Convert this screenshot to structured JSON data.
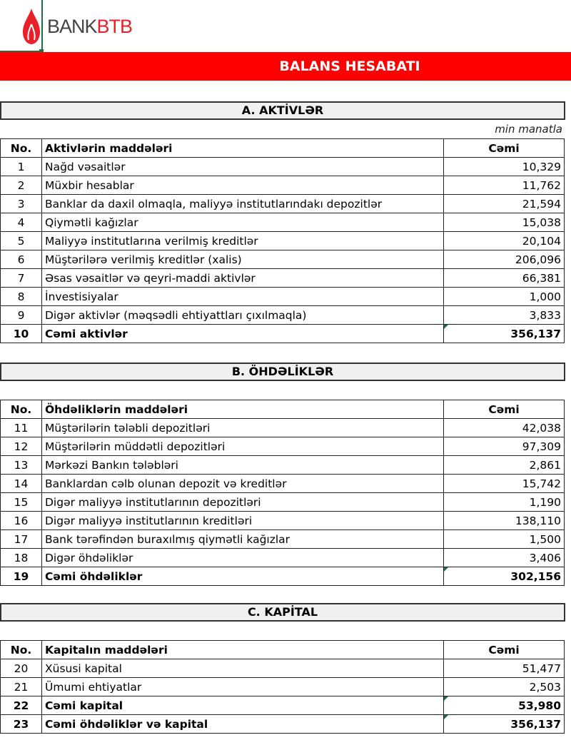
{
  "logo": {
    "text_a": "BANK",
    "text_b": "BTB"
  },
  "title": "BALANS HESABATI",
  "unit": "min manatla",
  "sections": [
    {
      "heading": "A. AKTİVLƏR",
      "columns": [
        "No.",
        "Aktivlərin maddələri",
        "Cəmi"
      ],
      "rows": [
        [
          "1",
          "Nağd vəsaitlər",
          "10,329"
        ],
        [
          "2",
          "Müxbir hesablar",
          "11,762"
        ],
        [
          "3",
          "Banklar da daxil olmaqla, maliyyə institutlarındakı depozitlər",
          "21,594"
        ],
        [
          "4",
          "Qiymətli kağızlar",
          "15,038"
        ],
        [
          "5",
          "Maliyyə institutlarına verilmiş kreditlər",
          "20,104"
        ],
        [
          "6",
          "Müştərilərə verilmiş kreditlər (xalis)",
          "206,096"
        ],
        [
          "7",
          "Əsas vəsaitlər və qeyri-maddi aktivlər",
          "66,381"
        ],
        [
          "8",
          "İnvestisiyalar",
          "1,000"
        ],
        [
          "9",
          "Digər aktivlər (məqsədli ehtiyattları çıxılmaqla)",
          "3,833"
        ],
        [
          "10",
          "Cəmi aktivlər",
          "356,137"
        ]
      ]
    },
    {
      "heading": "B. ÖHDƏLİKLƏR",
      "columns": [
        "No.",
        "Öhdəliklərin maddələri",
        "Cəmi"
      ],
      "rows": [
        [
          "11",
          "Müştərilərin tələbli depozitləri",
          "42,038"
        ],
        [
          "12",
          "Müştərilərin müddətli depozitləri",
          "97,309"
        ],
        [
          "13",
          "Mərkəzi Bankın tələbləri",
          "2,861"
        ],
        [
          "14",
          "Banklardan cəlb olunan depozit və kreditlər",
          "15,742"
        ],
        [
          "15",
          "Digər maliyyə institutlarının depozitləri",
          "1,190"
        ],
        [
          "16",
          "Digər maliyyə institutlarının kreditləri",
          "138,110"
        ],
        [
          "17",
          "Bank tərəfindən buraxılmış qiymətli kağızlar",
          "1,500"
        ],
        [
          "18",
          "Digər öhdəliklər",
          "3,406"
        ],
        [
          "19",
          "Cəmi öhdəliklər",
          "302,156"
        ]
      ]
    },
    {
      "heading": "C. KAPİTAL",
      "columns": [
        "No.",
        "Kapitalın maddələri",
        "Cəmi"
      ],
      "rows": [
        [
          "20",
          "Xüsusi kapital",
          "51,477"
        ],
        [
          "21",
          "Ümumi ehtiyatlar",
          "2,503"
        ],
        [
          "22",
          "Cəmi kapital",
          "53,980"
        ],
        [
          "23",
          "Cəmi öhdəliklər və kapital",
          "356,137"
        ]
      ]
    }
  ],
  "colors": {
    "title_bg": "#ff0000",
    "logo_red": "#e8202a",
    "header_bg": "#f0f0f0"
  }
}
